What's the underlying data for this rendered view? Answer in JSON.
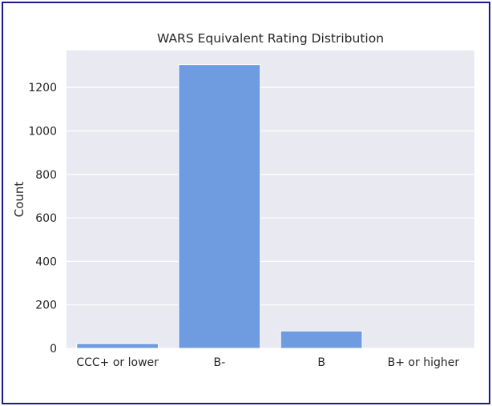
{
  "chart_data": {
    "type": "bar",
    "title": "WARS Equivalent Rating Distribution",
    "xlabel": "",
    "ylabel": "Count",
    "categories": [
      "CCC+ or lower",
      "B-",
      "B",
      "B+ or higher"
    ],
    "values": [
      22,
      1305,
      80,
      0
    ],
    "ylim": [
      0,
      1370
    ],
    "yticks": [
      0,
      200,
      400,
      600,
      800,
      1000,
      1200
    ],
    "grid": true,
    "bar_color": "#6f9be0",
    "plot_background": "#e9e9f1",
    "grid_color": "#ffffff"
  }
}
